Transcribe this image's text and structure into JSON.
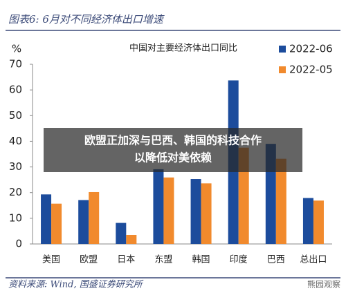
{
  "header": {
    "title": "图表6:  6月对不同经济体出口增速"
  },
  "chart_data": {
    "type": "bar",
    "title": "中国对主要经济体出口同比",
    "ylabel": "%",
    "categories": [
      "美国",
      "欧盟",
      "日本",
      "东盟",
      "韩国",
      "印度",
      "巴西",
      "总出口"
    ],
    "series": [
      {
        "name": "2022-06",
        "color": "#1c4c9c",
        "values": [
          19.3,
          17.1,
          8.2,
          29.1,
          25.3,
          63.7,
          39,
          17.9
        ]
      },
      {
        "name": "2022-05",
        "color": "#f18a2d",
        "values": [
          15.7,
          20.2,
          3.5,
          25.9,
          23.6,
          37.5,
          33.2,
          16.9
        ]
      }
    ],
    "ylim": [
      0,
      70
    ],
    "yticks": [
      0,
      10,
      20,
      30,
      40,
      50,
      60,
      70
    ],
    "legend": "upper right"
  },
  "footer": {
    "source": "资料来源: Wind, 国盛证券研究所"
  },
  "watermark": "熊园观察",
  "banner": {
    "lines": [
      "欧盟正加深与巴西、韩国的科技合作",
      "以降低对美依赖"
    ]
  }
}
